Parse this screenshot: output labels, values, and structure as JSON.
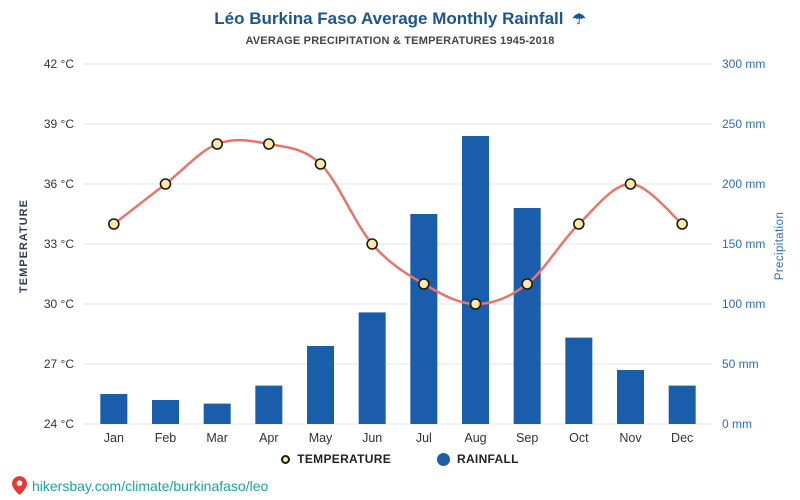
{
  "header": {
    "title": "Léo Burkina Faso Average Monthly Rainfall",
    "title_icon": "☂",
    "subtitle": "AVERAGE PRECIPITATION & TEMPERATURES 1945-2018"
  },
  "chart_data": {
    "type": "bar+line",
    "title": "Léo Burkina Faso Average Monthly Rainfall",
    "subtitle": "AVERAGE PRECIPITATION & TEMPERATURES 1945-2018",
    "categories": [
      "Jan",
      "Feb",
      "Mar",
      "Apr",
      "May",
      "Jun",
      "Jul",
      "Aug",
      "Sep",
      "Oct",
      "Nov",
      "Dec"
    ],
    "series": [
      {
        "name": "TEMPERATURE",
        "type": "line",
        "unit": "°C",
        "values": [
          34,
          36,
          38,
          38,
          37,
          33,
          31,
          30,
          31,
          34,
          36,
          34
        ]
      },
      {
        "name": "RAINFALL",
        "type": "bar",
        "unit": "mm",
        "values": [
          25,
          20,
          17,
          32,
          65,
          93,
          175,
          240,
          180,
          72,
          45,
          32
        ]
      }
    ],
    "left_axis": {
      "label": "TEMPERATURE",
      "min": 24,
      "max": 42,
      "step": 3,
      "ticks": [
        "42 °C",
        "39 °C",
        "36 °C",
        "33 °C",
        "30 °C",
        "27 °C",
        "24 °C"
      ]
    },
    "right_axis": {
      "label": "Precipitation",
      "min": 0,
      "max": 300,
      "step": 50,
      "ticks": [
        "300 mm",
        "250 mm",
        "200 mm",
        "150 mm",
        "100 mm",
        "50 mm",
        "0 mm"
      ]
    },
    "grid": true,
    "legend_position": "bottom",
    "colors": {
      "bar": "#1a5dab",
      "line": "#e8746c",
      "marker_fill": "#ffe9a8",
      "marker_stroke": "#1a1a1a",
      "title": "#1c5590",
      "right_axis": "#2e6db4",
      "link": "#1ba3a3",
      "pin": "#e53935",
      "grid": "#e4e4e4"
    }
  },
  "legend": {
    "temperature_label": "TEMPERATURE",
    "rainfall_label": "RAINFALL"
  },
  "footer": {
    "link": "hikersbay.com/climate/burkinafaso/leo"
  }
}
